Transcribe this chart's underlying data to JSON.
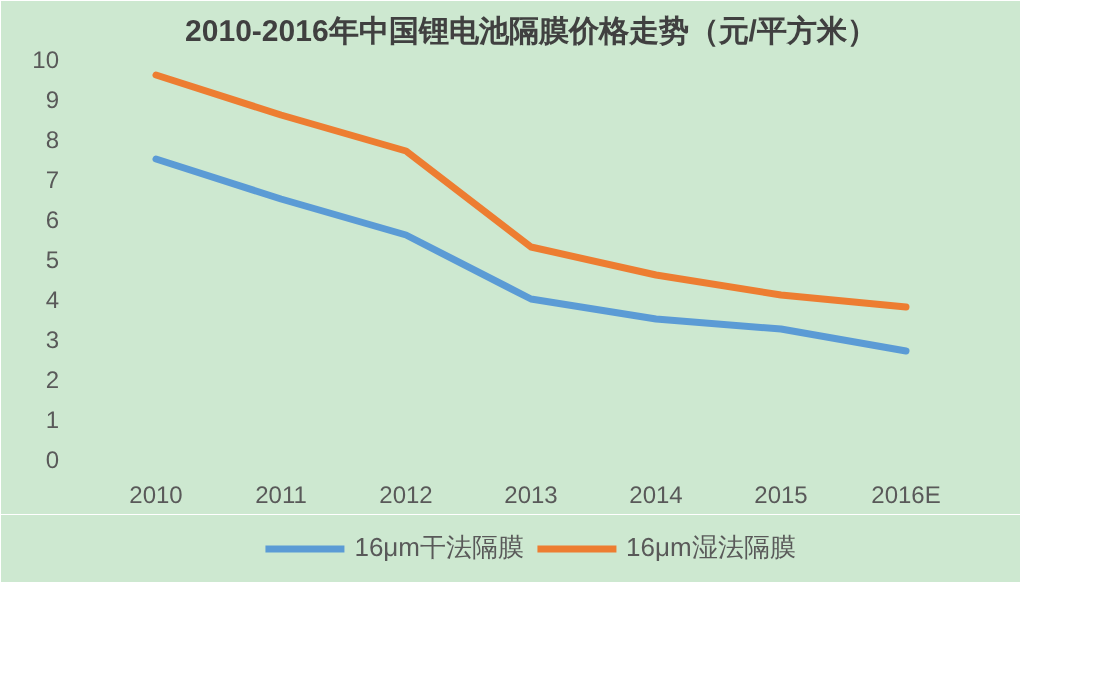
{
  "chart_data": {
    "type": "line",
    "title": "2010-2016年中国锂电池隔膜价格走势（元/平方米）",
    "categories": [
      "2010",
      "2011",
      "2012",
      "2013",
      "2014",
      "2015",
      "2016E"
    ],
    "series": [
      {
        "name": "16μm干法隔膜",
        "color": "#5b9bd5",
        "values": [
          7.5,
          6.5,
          5.6,
          4.0,
          3.5,
          3.25,
          2.7
        ]
      },
      {
        "name": "16μm湿法隔膜",
        "color": "#ed7d31",
        "values": [
          9.6,
          8.6,
          7.7,
          5.3,
          4.6,
          4.1,
          3.8
        ]
      }
    ],
    "ylim": [
      0,
      10
    ],
    "yticks": [
      0,
      1,
      2,
      3,
      4,
      5,
      6,
      7,
      8,
      9,
      10
    ],
    "grid": false,
    "legend": "bottom",
    "marker": "none",
    "line_style": "solid"
  }
}
